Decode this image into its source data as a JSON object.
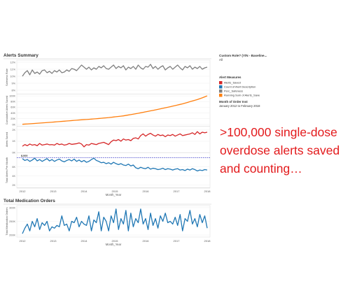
{
  "alerts_summary": {
    "title": "Alerts Summary",
    "x_label": "Month_Year",
    "x_ticks": [
      "2012",
      "2013",
      "2014",
      "2015",
      "2016",
      "2017",
      "2018"
    ],
    "reference_line_label": "8,000"
  },
  "filter_panel": {
    "custom_role_label": "Custom Role? (Y/N - Baseline...",
    "custom_role_value": "All",
    "legend_title": "Alert Measures",
    "month_label": "Month of Order Inst",
    "month_value": "January 2012 to February 2018"
  },
  "total_orders": {
    "title": "Total Medication Orders",
    "x_label": "Month_Year",
    "x_ticks": [
      "2012",
      "2013",
      "2014",
      "2015",
      "2016",
      "2017",
      "2018"
    ]
  },
  "callout": {
    "line1": ">100,000 single-dose",
    "line2": "overdose alerts saved",
    "line3": "and counting…"
  },
  "colors": {
    "alerts_saved": "#d62728",
    "count_of_alert": "#1f77b4",
    "perc_safeness": "#7f7f7f",
    "running_sum": "#ff7f0e",
    "callout": "#e31a1c",
    "reference_line": "#3a3ac8"
  },
  "chart_data": [
    {
      "type": "line",
      "title": "",
      "xlabel": "Month_Year",
      "ylabel": "Safeness Rate",
      "series": [
        {
          "name": "Perc_Safeness",
          "color": "#7f7f7f",
          "values": [
            10.0,
            10.5,
            10.8,
            10.2,
            10.9,
            10.4,
            10.6,
            10.3,
            10.8,
            10.9,
            10.5,
            10.7,
            10.4,
            10.8,
            10.6,
            10.9,
            10.5,
            10.6,
            10.9,
            10.7,
            11.1,
            11.0,
            10.8,
            11.2,
            11.6,
            11.3,
            11.0,
            11.3,
            10.9,
            11.2,
            11.0,
            11.4,
            11.2,
            11.5,
            11.1,
            11.0,
            11.3,
            11.6,
            11.1,
            11.4,
            11.2,
            11.5,
            10.9,
            11.3,
            11.1,
            11.4,
            11.0,
            11.6,
            11.2,
            11.0,
            11.4,
            11.3,
            11.7,
            11.1,
            11.4,
            11.0,
            11.3,
            11.5,
            10.9,
            11.2,
            11.4,
            11.0,
            11.3,
            11.6,
            11.2,
            10.9,
            11.4,
            11.2,
            11.5,
            11.0,
            11.3,
            11.1,
            11.4,
            11.0,
            11.2,
            11.3
          ]
        }
      ],
      "yticks": [
        8,
        9,
        10,
        11,
        12
      ],
      "ytick_labels": [
        "8%",
        "9%",
        "10%",
        "11%",
        "12%"
      ],
      "ylim": [
        7.5,
        12.2
      ]
    },
    {
      "type": "line",
      "title": "",
      "xlabel": "Month_Year",
      "ylabel": "Cumulative Alerts Saved",
      "series": [
        {
          "name": "Running Sum of Alerts_Save",
          "color": "#ff7f0e",
          "values": [
            600,
            1200,
            1800,
            2400,
            3000,
            3600,
            4200,
            4800,
            5400,
            6000,
            6600,
            7200,
            7900,
            8600,
            9300,
            10000,
            10700,
            11400,
            12100,
            12800,
            13500,
            14200,
            14900,
            15600,
            16200,
            16800,
            17400,
            18000,
            18700,
            19400,
            20100,
            20800,
            21600,
            22400,
            23200,
            24000,
            25000,
            26000,
            27000,
            28000,
            29000,
            30000,
            31500,
            33000,
            34500,
            36000,
            37500,
            39000,
            40700,
            42400,
            44100,
            45800,
            47500,
            49200,
            51000,
            52800,
            54600,
            56400,
            58200,
            60000,
            62000,
            64000,
            66000,
            68000,
            70000,
            72000,
            74500,
            77000,
            79500,
            82000,
            84500,
            87000,
            90000,
            93000,
            96500,
            100000
          ]
        }
      ],
      "yticks": [
        0,
        20000,
        40000,
        60000,
        80000,
        100000
      ],
      "ytick_labels": [
        "0K",
        "20K",
        "40K",
        "60K",
        "80K",
        "100K"
      ],
      "ylim": [
        -5000,
        105000
      ]
    },
    {
      "type": "line",
      "title": "",
      "xlabel": "Month_Year",
      "ylabel": "Alerts Saved",
      "series": [
        {
          "name": "Alerts_Saved",
          "color": "#d62728",
          "values": [
            550,
            700,
            600,
            750,
            650,
            700,
            600,
            800,
            650,
            700,
            750,
            680,
            700,
            650,
            800,
            700,
            750,
            650,
            700,
            800,
            720,
            750,
            780,
            850,
            750,
            500,
            700,
            650,
            800,
            750,
            700,
            800,
            850,
            900,
            800,
            700,
            950,
            1100,
            1050,
            1150,
            1000,
            1200,
            1100,
            1150,
            1050,
            1250,
            1300,
            1200,
            1500,
            1650,
            1450,
            1600,
            1700,
            1550,
            1450,
            1600,
            1500,
            1550,
            1400,
            1550,
            1500,
            1600,
            1450,
            1550,
            1650,
            1500,
            1550,
            1600,
            1650,
            1750,
            1600,
            1850,
            1650,
            1800,
            1750,
            1800
          ]
        }
      ],
      "yticks": [
        0,
        1000,
        2000
      ],
      "ytick_labels": [
        "0K",
        "1K",
        "2K"
      ],
      "ylim": [
        0,
        2300
      ]
    },
    {
      "type": "line",
      "title": "",
      "xlabel": "Month_Year",
      "ylabel": "Total Alerts Per Month",
      "series": [
        {
          "name": "Count of Alert Description",
          "color": "#1f77b4",
          "values": [
            7800,
            7400,
            7600,
            7200,
            7500,
            7900,
            7300,
            7600,
            7200,
            7500,
            7800,
            7300,
            7600,
            7200,
            7500,
            7700,
            7300,
            7100,
            7400,
            7600,
            7300,
            7700,
            7200,
            7500,
            7100,
            7400,
            7000,
            7200,
            7600,
            7900,
            7400,
            7200,
            6900,
            7000,
            6700,
            6900,
            6600,
            7000,
            6700,
            6500,
            6700,
            6400,
            6300,
            6600,
            6200,
            6400,
            5800,
            5600,
            5900,
            5700,
            5600,
            5900,
            5500,
            5700,
            5600,
            5400,
            5500,
            5700,
            5400,
            5600,
            5500,
            5300,
            5500,
            5600,
            5300,
            5400,
            5200,
            5500,
            5300,
            5600,
            5400,
            5100,
            5300,
            5200,
            5400,
            5300
          ]
        }
      ],
      "reference_line": 8000,
      "yticks": [
        2000,
        4000,
        6000
      ],
      "ytick_labels": [
        "2K",
        "4K",
        "6K"
      ],
      "ylim": [
        1500,
        9000
      ]
    },
    {
      "type": "line",
      "title": "Total Medication Orders",
      "xlabel": "Month_Year",
      "ylabel": "Total Medication Orders",
      "series": [
        {
          "name": "Total Medication Orders",
          "color": "#1f77b4",
          "values": [
            205,
            225,
            240,
            215,
            250,
            230,
            260,
            220,
            245,
            235,
            250,
            215,
            230,
            225,
            235,
            230,
            270,
            235,
            240,
            215,
            250,
            245,
            265,
            230,
            250,
            240,
            235,
            270,
            215,
            255,
            245,
            285,
            215,
            265,
            250,
            215,
            270,
            245,
            295,
            220,
            260,
            240,
            290,
            215,
            280,
            230,
            260,
            245,
            295,
            240,
            260,
            220,
            280,
            235,
            260,
            225,
            270,
            250,
            280,
            245,
            250,
            240,
            265,
            235,
            275,
            215,
            260,
            250,
            290,
            240,
            260,
            230,
            275,
            245,
            270,
            225
          ]
        }
      ],
      "yticks": [
        200,
        250,
        300
      ],
      "ytick_labels": [
        "200K",
        "250K",
        "300K"
      ],
      "ylim": [
        195,
        305
      ]
    }
  ]
}
